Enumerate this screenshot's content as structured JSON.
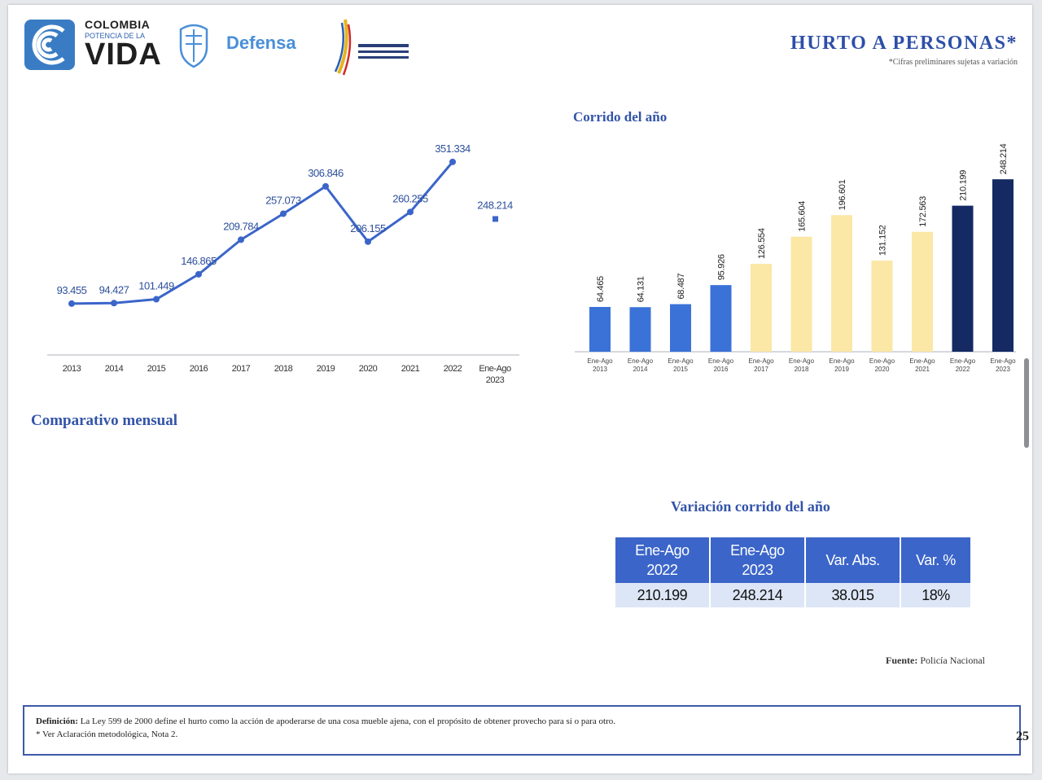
{
  "header": {
    "col_line1": "COLOMBIA",
    "col_line2": "POTENCIA DE LA",
    "col_line3": "VIDA",
    "defensa": "Defensa",
    "title": "HURTO A PERSONAS*",
    "subtitle": "*Cifras preliminares sujetas a variación"
  },
  "sections": {
    "corrido": "Corrido del año",
    "mensual": "Comparativo mensual",
    "variacion": "Variación corrido del año"
  },
  "variation_table": {
    "headers": [
      [
        "Ene-Ago",
        "2022"
      ],
      [
        "Ene-Ago",
        "2023"
      ],
      [
        "Var. Abs."
      ],
      [
        "Var. %"
      ]
    ],
    "values": [
      "210.199",
      "248.214",
      "38.015",
      "18%"
    ]
  },
  "fuente": {
    "label": "Fuente:",
    "value": "Policía Nacional"
  },
  "definition": {
    "label": "Definición:",
    "text": "La Ley 599 de 2000 define el hurto como la acción de apoderarse de una cosa mueble ajena, con el propósito de obtener provecho para sí o para otro.",
    "note": "* Ver Aclaración metodológica, Nota 2."
  },
  "page_number": "25",
  "colors": {
    "blue": "#3b72d8",
    "yellow": "#fbe7a6",
    "navy": "#152a63",
    "title_blue": "#2e4fa8",
    "line_blue": "#3b65c9"
  },
  "chart_data": [
    {
      "type": "line",
      "categories": [
        "2013",
        "2014",
        "2015",
        "2016",
        "2017",
        "2018",
        "2019",
        "2020",
        "2021",
        "2022",
        "Ene-Ago 2023"
      ],
      "series": [
        {
          "values": [
            93455,
            94427,
            101449,
            146865,
            209784,
            257073,
            306846,
            206155,
            260255,
            351334,
            null
          ]
        }
      ],
      "extra_point": {
        "category": "Ene-Ago 2023",
        "value": 248214
      },
      "labels": [
        "93.455",
        "94.427",
        "101.449",
        "146.865",
        "209.784",
        "257.073",
        "306.846",
        "206.155",
        "260.255",
        "351.334",
        "248.214"
      ],
      "ylim": [
        0,
        400000
      ]
    },
    {
      "type": "bar",
      "title": "Corrido del año",
      "categories": [
        "Ene-Ago 2013",
        "Ene-Ago 2014",
        "Ene-Ago 2015",
        "Ene-Ago 2016",
        "Ene-Ago 2017",
        "Ene-Ago 2018",
        "Ene-Ago 2019",
        "Ene-Ago 2020",
        "Ene-Ago 2021",
        "Ene-Ago 2022",
        "Ene-Ago 2023"
      ],
      "values": [
        64465,
        64131,
        68487,
        95926,
        126554,
        165604,
        196601,
        131152,
        172563,
        210199,
        248214
      ],
      "labels": [
        "64.465",
        "64.131",
        "68.487",
        "95.926",
        "126.554",
        "165.604",
        "196.601",
        "131.152",
        "172.563",
        "210.199",
        "248.214"
      ],
      "bar_colors": [
        "blue",
        "blue",
        "blue",
        "blue",
        "yellow",
        "yellow",
        "yellow",
        "yellow",
        "yellow",
        "navy",
        "navy"
      ],
      "ylim": [
        0,
        300000
      ]
    }
  ]
}
